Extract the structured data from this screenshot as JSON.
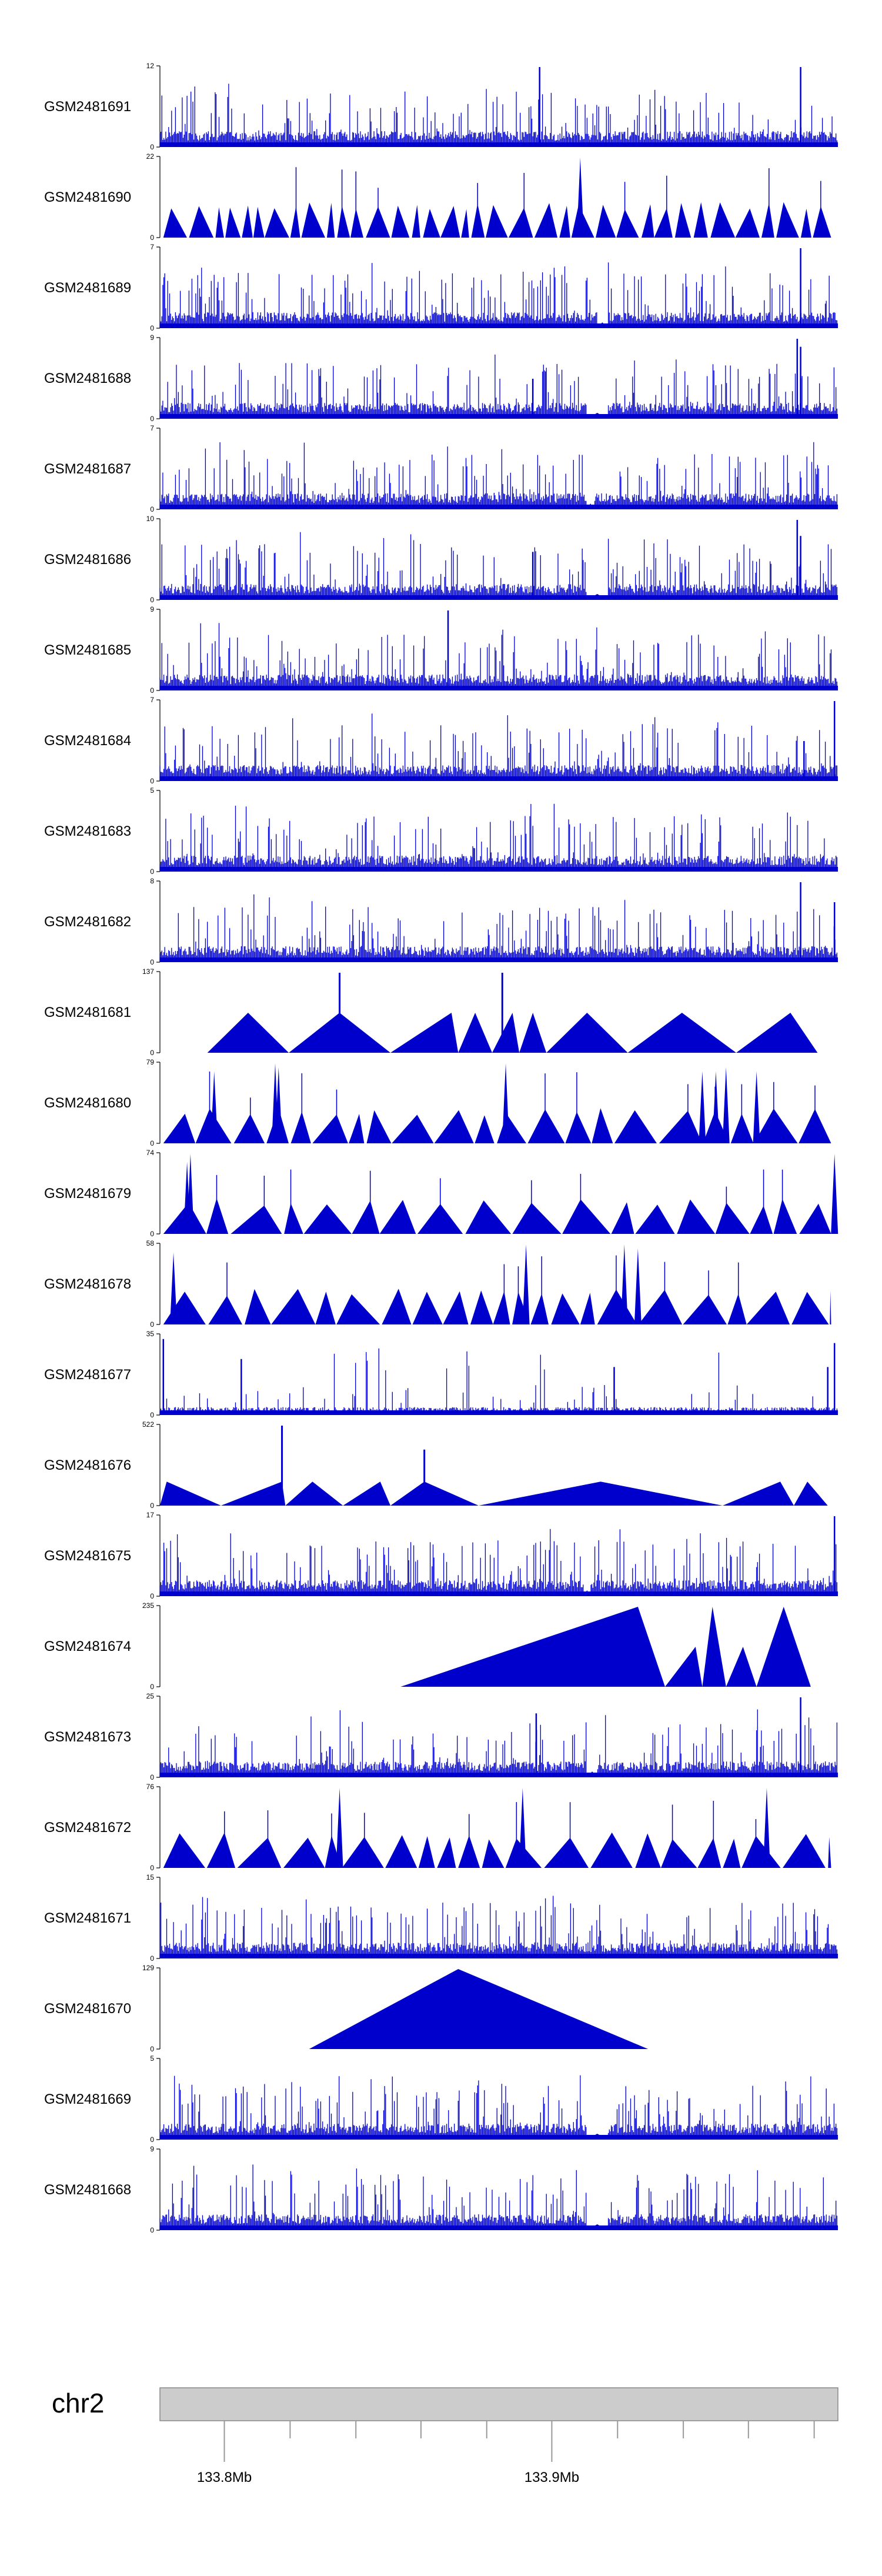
{
  "chart_data": {
    "type": "area",
    "title": "",
    "xlabel": "",
    "ylabel": "",
    "colors": {
      "signal": "#0000cd",
      "ideogram_fill": "#cccccc",
      "ideogram_stroke": "#888888"
    },
    "tracks": [
      {
        "name": "GSM2481691",
        "ymax": 12,
        "style": "dense",
        "seed": 91,
        "peaks": [
          [
            0.56,
            1.0
          ],
          [
            0.945,
            1.0
          ]
        ],
        "dips": []
      },
      {
        "name": "GSM2481690",
        "ymax": 22,
        "style": "triangles",
        "seed": 90,
        "count": 55,
        "peaks": [
          [
            0.62,
            1.0
          ]
        ],
        "dips": []
      },
      {
        "name": "GSM2481689",
        "ymax": 7,
        "style": "dense",
        "seed": 89,
        "peaks": [
          [
            0.945,
            1.0
          ]
        ],
        "dips": [
          [
            0.645,
            0.66
          ]
        ]
      },
      {
        "name": "GSM2481688",
        "ymax": 9,
        "style": "dense",
        "seed": 88,
        "peaks": [
          [
            0.94,
            1.0
          ],
          [
            0.945,
            0.9
          ],
          [
            0.55,
            0.5
          ]
        ],
        "dips": [
          [
            0.63,
            0.66
          ]
        ]
      },
      {
        "name": "GSM2481687",
        "ymax": 7,
        "style": "dense",
        "seed": 87,
        "peaks": [],
        "dips": [
          [
            0.63,
            0.64
          ]
        ]
      },
      {
        "name": "GSM2481686",
        "ymax": 10,
        "style": "dense",
        "seed": 86,
        "peaks": [
          [
            0.94,
            1.0
          ],
          [
            0.945,
            0.8
          ],
          [
            0.55,
            0.6
          ]
        ],
        "dips": [
          [
            0.63,
            0.66
          ]
        ]
      },
      {
        "name": "GSM2481685",
        "ymax": 9,
        "style": "dense",
        "seed": 85,
        "peaks": [
          [
            0.425,
            1.0
          ]
        ],
        "dips": []
      },
      {
        "name": "GSM2481684",
        "ymax": 7,
        "style": "dense",
        "seed": 84,
        "peaks": [
          [
            0.995,
            1.0
          ],
          [
            0.95,
            0.5
          ]
        ],
        "dips": []
      },
      {
        "name": "GSM2481683",
        "ymax": 5,
        "style": "dense",
        "seed": 83,
        "peaks": [],
        "dips": []
      },
      {
        "name": "GSM2481682",
        "ymax": 8,
        "style": "dense",
        "seed": 82,
        "peaks": [
          [
            0.945,
            1.0
          ],
          [
            0.995,
            0.75
          ]
        ],
        "dips": []
      },
      {
        "name": "GSM2481681",
        "ymax": 137,
        "style": "bigtri",
        "triangles": [
          [
            0.07,
            0.13,
            0.19,
            0.5
          ],
          [
            0.19,
            0.265,
            0.34,
            0.5
          ],
          [
            0.34,
            0.43,
            0.44,
            0.5
          ],
          [
            0.44,
            0.465,
            0.49,
            0.5
          ],
          [
            0.49,
            0.52,
            0.53,
            0.5
          ],
          [
            0.53,
            0.55,
            0.57,
            0.5
          ],
          [
            0.57,
            0.63,
            0.69,
            0.5
          ],
          [
            0.69,
            0.77,
            0.85,
            0.5
          ],
          [
            0.85,
            0.93,
            0.97,
            0.5
          ]
        ],
        "spikes": [
          [
            0.265,
            1.0
          ],
          [
            0.505,
            1.0
          ]
        ]
      },
      {
        "name": "GSM2481680",
        "ymax": 79,
        "style": "triangles",
        "seed": 80,
        "count": 30,
        "peaks": [
          [
            0.08,
            0.9
          ],
          [
            0.17,
            1.0
          ],
          [
            0.175,
            0.95
          ],
          [
            0.51,
            1.0
          ],
          [
            0.8,
            0.9
          ],
          [
            0.82,
            0.9
          ],
          [
            0.835,
            0.95
          ],
          [
            0.88,
            0.9
          ]
        ],
        "dips": []
      },
      {
        "name": "GSM2481679",
        "ymax": 74,
        "style": "triangles",
        "seed": 79,
        "count": 26,
        "peaks": [
          [
            0.04,
            0.9
          ],
          [
            0.045,
            1.0
          ],
          [
            0.995,
            1.0
          ]
        ],
        "dips": []
      },
      {
        "name": "GSM2481678",
        "ymax": 58,
        "style": "triangles",
        "seed": 78,
        "count": 30,
        "peaks": [
          [
            0.02,
            0.9
          ],
          [
            0.54,
            1.0
          ],
          [
            0.685,
            1.0
          ],
          [
            0.705,
            0.95
          ]
        ],
        "dips": []
      },
      {
        "name": "GSM2481677",
        "ymax": 35,
        "style": "sparse",
        "seed": 77,
        "peaks": [
          [
            0.005,
            0.95
          ],
          [
            0.12,
            0.7
          ],
          [
            0.67,
            0.6
          ],
          [
            0.995,
            0.9
          ],
          [
            0.985,
            0.6
          ]
        ],
        "dips": []
      },
      {
        "name": "GSM2481676",
        "ymax": 522,
        "style": "bigtri",
        "triangles": [
          [
            0.0,
            0.01,
            0.09,
            0.3
          ],
          [
            0.09,
            0.18,
            0.185,
            0.3
          ],
          [
            0.185,
            0.225,
            0.27,
            0.3
          ],
          [
            0.27,
            0.325,
            0.34,
            0.3
          ],
          [
            0.34,
            0.39,
            0.47,
            0.3
          ],
          [
            0.47,
            0.65,
            0.83,
            0.3
          ],
          [
            0.83,
            0.915,
            0.935,
            0.3
          ],
          [
            0.935,
            0.955,
            0.985,
            0.3
          ]
        ],
        "spikes": [
          [
            0.18,
            1.0
          ],
          [
            0.39,
            0.7
          ]
        ]
      },
      {
        "name": "GSM2481675",
        "ymax": 17,
        "style": "dense",
        "seed": 75,
        "peaks": [
          [
            0.995,
            1.0
          ]
        ],
        "dips": [
          [
            0.625,
            0.635
          ]
        ]
      },
      {
        "name": "GSM2481674",
        "ymax": 235,
        "style": "bigtri",
        "triangles": [
          [
            0.355,
            0.705,
            0.745,
            1.0
          ],
          [
            0.745,
            0.79,
            0.8,
            0.5
          ],
          [
            0.8,
            0.815,
            0.835,
            1.0
          ],
          [
            0.835,
            0.86,
            0.88,
            0.5
          ],
          [
            0.88,
            0.92,
            0.96,
            1.0
          ]
        ],
        "spikes": []
      },
      {
        "name": "GSM2481673",
        "ymax": 25,
        "style": "dense",
        "seed": 73,
        "peaks": [
          [
            0.945,
            1.0
          ],
          [
            0.555,
            0.8
          ]
        ],
        "dips": [
          [
            0.63,
            0.645
          ]
        ]
      },
      {
        "name": "GSM2481672",
        "ymax": 76,
        "style": "triangles",
        "seed": 72,
        "count": 30,
        "peaks": [
          [
            0.265,
            1.0
          ],
          [
            0.535,
            1.0
          ],
          [
            0.895,
            1.0
          ]
        ],
        "dips": []
      },
      {
        "name": "GSM2481671",
        "ymax": 15,
        "style": "dense",
        "seed": 71,
        "peaks": [],
        "dips": []
      },
      {
        "name": "GSM2481670",
        "ymax": 129,
        "style": "bigtri",
        "triangles": [
          [
            0.22,
            0.44,
            0.72,
            1.0
          ]
        ],
        "spikes": []
      },
      {
        "name": "GSM2481669",
        "ymax": 5,
        "style": "dense",
        "seed": 69,
        "peaks": [],
        "dips": [
          [
            0.63,
            0.66
          ]
        ]
      },
      {
        "name": "GSM2481668",
        "ymax": 9,
        "style": "dense",
        "seed": 68,
        "peaks": [],
        "dips": [
          [
            0.63,
            0.66
          ]
        ]
      }
    ],
    "ideogram": {
      "chromosome": "chr2",
      "tick_labels": [
        "133.8Mb",
        "133.9Mb"
      ],
      "label_positions": [
        0.095,
        0.578
      ],
      "minor_ticks": [
        0.095,
        0.192,
        0.289,
        0.385,
        0.482,
        0.578,
        0.675,
        0.772,
        0.868,
        0.965
      ]
    }
  }
}
